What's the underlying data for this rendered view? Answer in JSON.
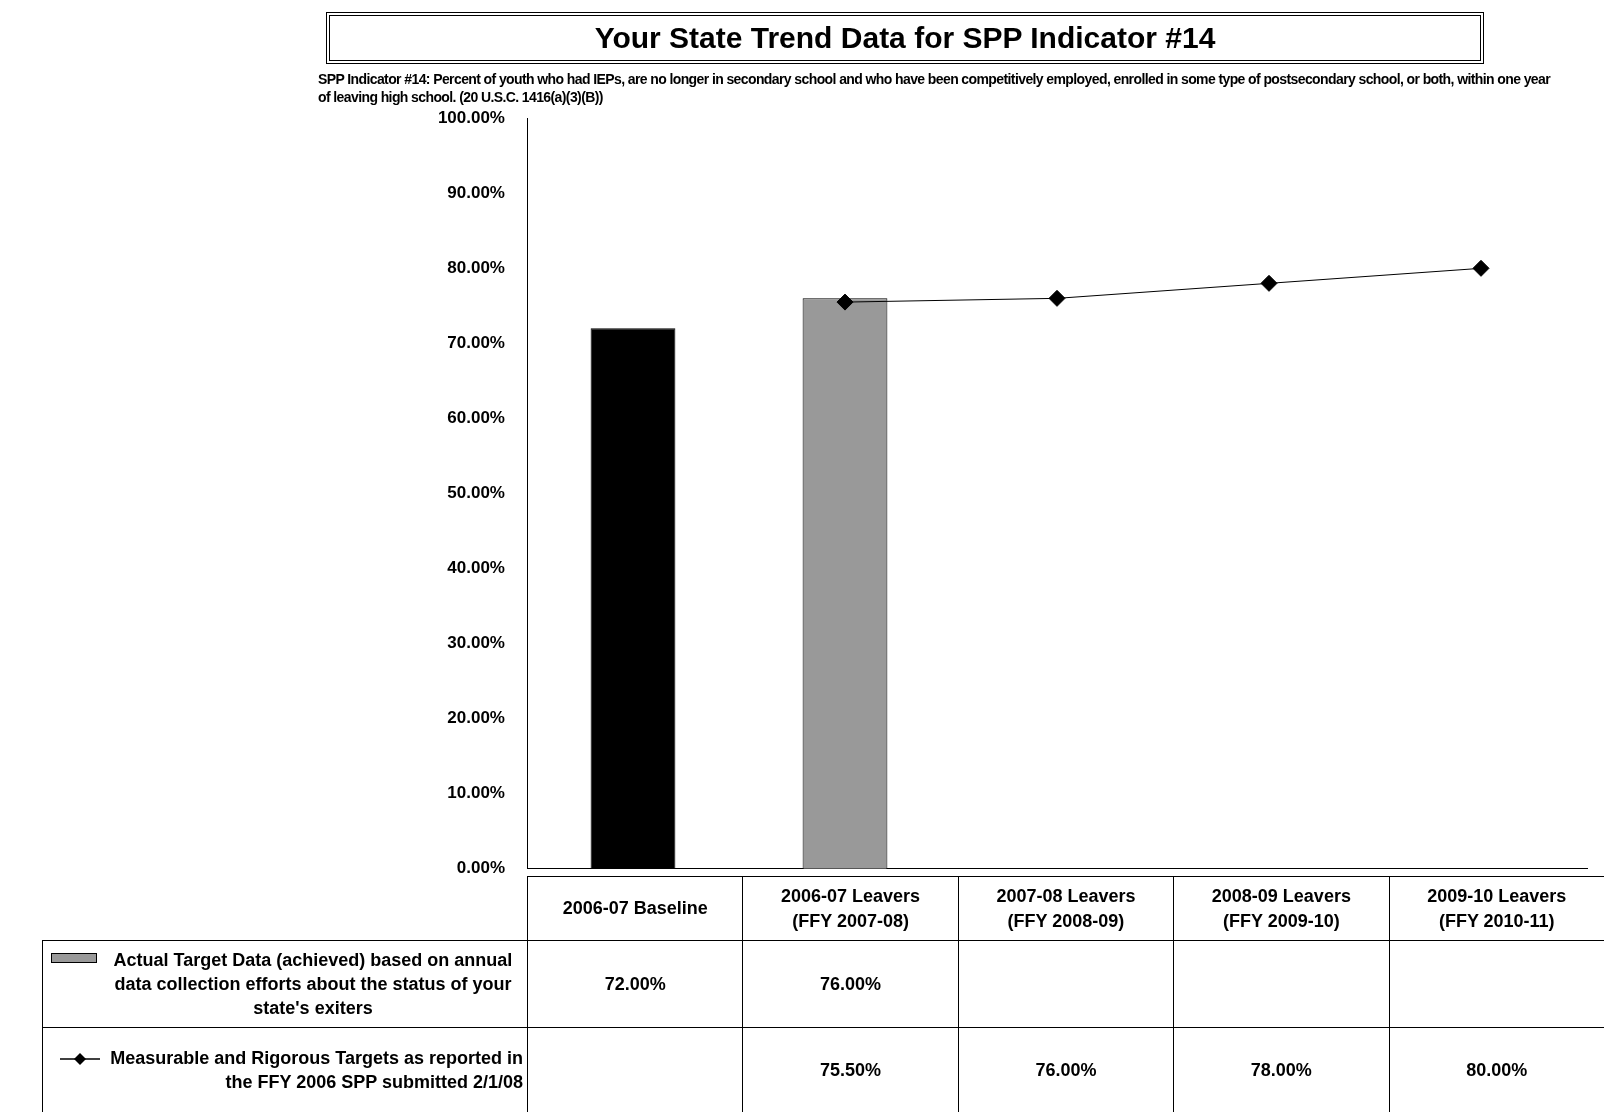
{
  "chart_data": {
    "type": "bar",
    "title": "Your State  Trend Data for SPP Indicator #14",
    "subtitle": "SPP Indicator #14:  Percent of youth who had IEPs, are no longer in secondary school and who have been competitively employed, enrolled in some type of postsecondary school, or both, within one year of leaving high school. (20 U.S.C. 1416(a)(3)(B))",
    "categories": [
      "2006-07 Baseline",
      "2006-07 Leavers\n(FFY 2007-08)",
      "2007-08 Leavers\n(FFY 2008-09)",
      "2008-09 Leavers\n(FFY 2009-10)",
      "2009-10 Leavers\n(FFY 2010-11)"
    ],
    "series": [
      {
        "name": "Actual Target Data (achieved) based on annual data collection efforts about the status of your state's exiters",
        "color": "#999999",
        "colors": [
          "#000000",
          "#999999",
          "#999999",
          "#999999",
          "#999999"
        ],
        "values": [
          72,
          76,
          null,
          null,
          null
        ],
        "value_labels": [
          "72.00%",
          "76.00%",
          null,
          null,
          null
        ]
      },
      {
        "name": "Measurable and Rigorous Targets as reported in the FFY 2006 SPP submitted 2/1/08",
        "type": "line",
        "color": "#000000",
        "marker": "diamond",
        "values": [
          null,
          75.5,
          76,
          78,
          80
        ],
        "value_labels": [
          null,
          "75.50%",
          "76.00%",
          "78.00%",
          "80.00%"
        ]
      }
    ],
    "ylim": [
      0,
      100
    ],
    "yticks": [
      {
        "value": 0,
        "label": "0.00%"
      },
      {
        "value": 10,
        "label": "10.00%"
      },
      {
        "value": 20,
        "label": "20.00%"
      },
      {
        "value": 30,
        "label": "30.00%"
      },
      {
        "value": 40,
        "label": "40.00%"
      },
      {
        "value": 50,
        "label": "50.00%"
      },
      {
        "value": 60,
        "label": "60.00%"
      },
      {
        "value": 70,
        "label": "70.00%"
      },
      {
        "value": 80,
        "label": "80.00%"
      },
      {
        "value": 90,
        "label": "90.00%"
      },
      {
        "value": 100,
        "label": "100.00%"
      }
    ],
    "grid": false,
    "legend": "bottom"
  }
}
